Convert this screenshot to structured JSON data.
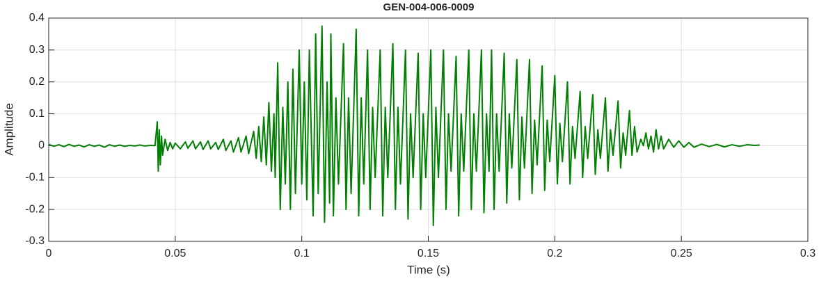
{
  "chart_data": {
    "type": "line",
    "title": "GEN-004-006-0009",
    "x_label": "Time (s)",
    "y_label": "Amplitude",
    "color": "#008000",
    "grid": true,
    "xlim": [
      0,
      0.3
    ],
    "xticks": [
      0,
      0.05,
      0.1,
      0.15,
      0.2,
      0.25,
      0.3
    ],
    "ylim": [
      -0.3,
      0.4
    ],
    "yticks": [
      -0.3,
      -0.2,
      -0.1,
      0,
      0.1,
      0.2,
      0.3,
      0.4
    ],
    "x": [
      0,
      0.002,
      0.004,
      0.006,
      0.008,
      0.01,
      0.012,
      0.014,
      0.016,
      0.018,
      0.02,
      0.022,
      0.024,
      0.026,
      0.028,
      0.03,
      0.032,
      0.034,
      0.036,
      0.038,
      0.04,
      0.042,
      0.0429,
      0.0433,
      0.0437,
      0.0441,
      0.0446,
      0.045,
      0.046,
      0.047,
      0.048,
      0.049,
      0.05,
      0.052,
      0.054,
      0.055,
      0.057,
      0.058,
      0.06,
      0.061,
      0.063,
      0.064,
      0.066,
      0.067,
      0.069,
      0.07,
      0.072,
      0.073,
      0.075,
      0.076,
      0.078,
      0.079,
      0.081,
      0.082,
      0.083,
      0.084,
      0.085,
      0.086,
      0.087,
      0.088,
      0.089,
      0.0895,
      0.0905,
      0.0915,
      0.0925,
      0.0935,
      0.0945,
      0.0955,
      0.0965,
      0.0975,
      0.099,
      0.1,
      0.101,
      0.102,
      0.103,
      0.1045,
      0.1055,
      0.1065,
      0.108,
      0.109,
      0.11,
      0.111,
      0.1115,
      0.1125,
      0.1135,
      0.1145,
      0.1165,
      0.1175,
      0.1185,
      0.1195,
      0.1215,
      0.1225,
      0.1235,
      0.1245,
      0.126,
      0.127,
      0.128,
      0.129,
      0.131,
      0.132,
      0.133,
      0.134,
      0.136,
      0.137,
      0.138,
      0.139,
      0.141,
      0.142,
      0.143,
      0.144,
      0.146,
      0.147,
      0.148,
      0.149,
      0.151,
      0.152,
      0.153,
      0.154,
      0.156,
      0.157,
      0.158,
      0.159,
      0.161,
      0.162,
      0.163,
      0.164,
      0.166,
      0.167,
      0.168,
      0.169,
      0.171,
      0.172,
      0.173,
      0.174,
      0.175,
      0.176,
      0.177,
      0.178,
      0.18,
      0.181,
      0.182,
      0.183,
      0.185,
      0.186,
      0.187,
      0.188,
      0.19,
      0.191,
      0.192,
      0.193,
      0.195,
      0.196,
      0.197,
      0.198,
      0.2,
      0.201,
      0.202,
      0.203,
      0.205,
      0.206,
      0.207,
      0.208,
      0.21,
      0.211,
      0.212,
      0.213,
      0.215,
      0.216,
      0.217,
      0.218,
      0.22,
      0.221,
      0.222,
      0.223,
      0.225,
      0.226,
      0.227,
      0.228,
      0.2295,
      0.2305,
      0.2315,
      0.2325,
      0.234,
      0.235,
      0.236,
      0.237,
      0.238,
      0.239,
      0.24,
      0.241,
      0.242,
      0.243,
      0.245,
      0.247,
      0.249,
      0.251,
      0.253,
      0.255,
      0.258,
      0.261,
      0.264,
      0.267,
      0.27,
      0.273,
      0.276,
      0.279,
      0.281
    ],
    "values": [
      0.004,
      -0.002,
      0.003,
      -0.003,
      0.004,
      -0.002,
      0.002,
      -0.004,
      0.003,
      -0.002,
      0.002,
      -0.005,
      0.003,
      -0.002,
      0.002,
      -0.002,
      0.001,
      -0.001,
      0.002,
      -0.001,
      0.001,
      0,
      0.075,
      -0.08,
      0.05,
      -0.06,
      0.03,
      -0.03,
      0.02,
      -0.015,
      0.01,
      -0.01,
      0.008,
      -0.01,
      0.012,
      -0.008,
      0.015,
      -0.01,
      0.012,
      -0.012,
      0.015,
      -0.01,
      0.01,
      -0.012,
      0.02,
      -0.015,
      0.015,
      -0.02,
      0.025,
      -0.02,
      0.03,
      -0.025,
      0.045,
      -0.04,
      0.06,
      -0.05,
      0.09,
      -0.06,
      0.135,
      -0.08,
      0.1,
      -0.1,
      0.26,
      -0.2,
      0.12,
      -0.12,
      0.2,
      -0.2,
      0.24,
      -0.15,
      0.3,
      -0.12,
      0.2,
      -0.17,
      0.3,
      -0.22,
      0.35,
      -0.15,
      0.375,
      -0.24,
      0.2,
      -0.18,
      0.35,
      -0.22,
      0.15,
      -0.12,
      0.32,
      -0.2,
      0.15,
      -0.15,
      0.365,
      -0.22,
      0.15,
      -0.12,
      0.3,
      -0.2,
      0.12,
      -0.1,
      0.3,
      -0.22,
      0.12,
      -0.1,
      0.32,
      -0.2,
      0.12,
      -0.12,
      0.3,
      -0.23,
      0.1,
      -0.1,
      0.29,
      -0.2,
      0.1,
      -0.1,
      0.3,
      -0.25,
      0.12,
      -0.1,
      0.3,
      -0.2,
      0.1,
      -0.08,
      0.28,
      -0.22,
      0.1,
      -0.08,
      0.3,
      -0.2,
      0.1,
      -0.08,
      0.3,
      -0.21,
      0.1,
      -0.08,
      0.3,
      -0.2,
      0.1,
      -0.08,
      0.29,
      -0.18,
      0.1,
      -0.07,
      0.27,
      -0.17,
      0.09,
      -0.07,
      0.27,
      -0.15,
      0.08,
      -0.06,
      0.25,
      -0.14,
      0.08,
      -0.05,
      0.22,
      -0.12,
      0.07,
      -0.05,
      0.2,
      -0.12,
      0.06,
      -0.04,
      0.17,
      -0.1,
      0.06,
      -0.04,
      0.16,
      -0.09,
      0.05,
      -0.04,
      0.15,
      -0.08,
      0.05,
      -0.03,
      0.14,
      -0.07,
      0.04,
      -0.03,
      0.11,
      -0.03,
      0.06,
      -0.02,
      0.02,
      0,
      0.04,
      -0.01,
      0.03,
      -0.02,
      0.05,
      -0.01,
      0.03,
      -0.01,
      0.02,
      -0.005,
      0.015,
      -0.005,
      0.01,
      -0.005,
      0.005,
      -0.003,
      0.004,
      -0.004,
      0.003,
      -0.002,
      0.003,
      0.001,
      0.002
    ]
  }
}
